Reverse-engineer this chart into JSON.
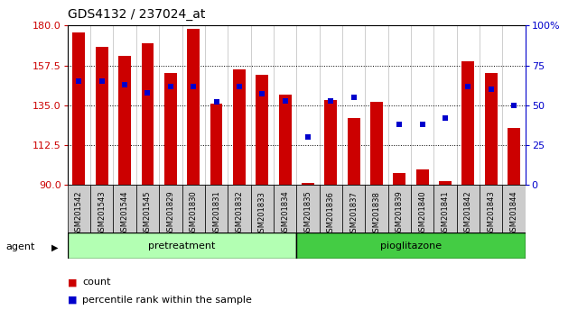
{
  "title": "GDS4132 / 237024_at",
  "samples": [
    "GSM201542",
    "GSM201543",
    "GSM201544",
    "GSM201545",
    "GSM201829",
    "GSM201830",
    "GSM201831",
    "GSM201832",
    "GSM201833",
    "GSM201834",
    "GSM201835",
    "GSM201836",
    "GSM201837",
    "GSM201838",
    "GSM201839",
    "GSM201840",
    "GSM201841",
    "GSM201842",
    "GSM201843",
    "GSM201844"
  ],
  "count_values": [
    176,
    168,
    163,
    170,
    153,
    178,
    136,
    155,
    152,
    141,
    91,
    138,
    128,
    137,
    97,
    99,
    92,
    160,
    153,
    122
  ],
  "percentile_values": [
    65,
    65,
    63,
    58,
    62,
    62,
    52,
    62,
    57,
    53,
    30,
    53,
    55,
    null,
    38,
    38,
    42,
    62,
    60,
    50
  ],
  "pretreatment_indices": [
    0,
    1,
    2,
    3,
    4,
    5,
    6,
    7,
    8,
    9
  ],
  "pioglitazone_indices": [
    10,
    11,
    12,
    13,
    14,
    15,
    16,
    17,
    18,
    19
  ],
  "ylim_left": [
    90,
    180
  ],
  "ylim_right": [
    0,
    100
  ],
  "yticks_left": [
    90,
    112.5,
    135,
    157.5,
    180
  ],
  "yticks_right": [
    0,
    25,
    50,
    75,
    100
  ],
  "bar_color": "#cc0000",
  "dot_color": "#0000cc",
  "pretreatment_color": "#b3ffb3",
  "pioglitazone_color": "#44cc44",
  "xtick_box_color": "#cccccc",
  "agent_label": "agent",
  "pretreatment_label": "pretreatment",
  "pioglitazone_label": "pioglitazone",
  "legend_count": "count",
  "legend_percentile": "percentile rank within the sample",
  "bar_width": 0.55,
  "ylabel_left_color": "#cc0000",
  "ylabel_right_color": "#0000cc",
  "plot_bg": "#ffffff",
  "fig_bg": "#ffffff"
}
